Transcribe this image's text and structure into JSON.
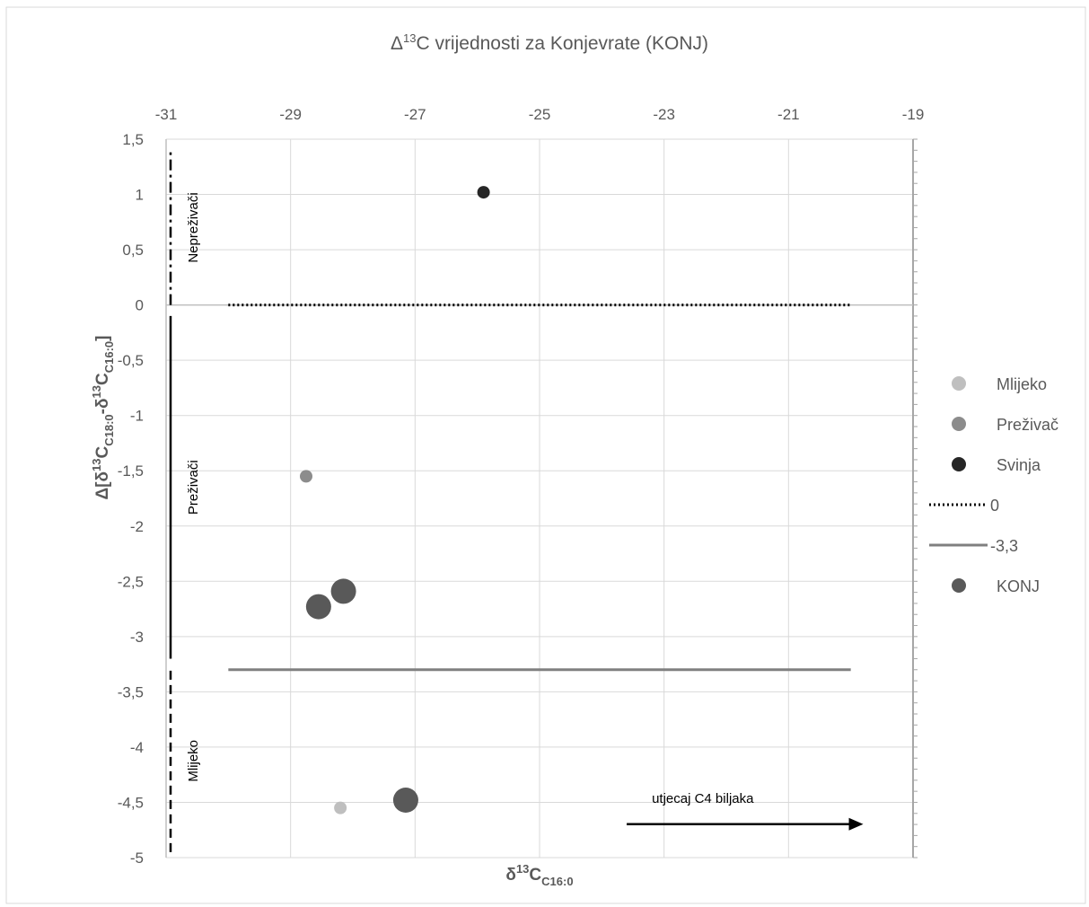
{
  "chart_data": {
    "type": "scatter",
    "title": "Δ13C vrijednosti za Konjevrate (KONJ)",
    "title_parts": {
      "pre": "Δ",
      "sup": "13",
      "post": "C vrijednosti za Konjevrate (KONJ)"
    },
    "xlabel": "δ13CC16:0",
    "xlabel_parts": {
      "main": "δ",
      "sup": "13",
      "mid": "C",
      "sub": "C16:0"
    },
    "ylabel": "Δ[δ13CC18:0-δ13CC16:0]",
    "ylabel_parts": {
      "a": "Δ[δ",
      "sup1": "13",
      "b": "C",
      "sub1": "C18:0",
      "c": "-δ",
      "sup2": "13",
      "d": "C",
      "sub2": "C16:0",
      "e": "]"
    },
    "xlim": [
      -31,
      -19
    ],
    "ylim": [
      -5,
      1.5
    ],
    "x_ticks": [
      "-31",
      "-29",
      "-27",
      "-25",
      "-23",
      "-21",
      "-19"
    ],
    "x_tick_values": [
      -31,
      -29,
      -27,
      -25,
      -23,
      -21,
      -19
    ],
    "y_ticks": [
      "1,5",
      "1",
      "0,5",
      "0",
      "-0,5",
      "-1",
      "-1,5",
      "-2",
      "-2,5",
      "-3",
      "-3,5",
      "-4",
      "-4,5",
      "-5"
    ],
    "y_tick_values": [
      1.5,
      1,
      0.5,
      0,
      -0.5,
      -1,
      -1.5,
      -2,
      -2.5,
      -3,
      -3.5,
      -4,
      -4.5,
      -5
    ],
    "x_axis_position": "top",
    "grid": true,
    "legend_position": "right",
    "series": [
      {
        "name": "Mlijeko",
        "marker": "circle",
        "size": "small",
        "color": "#bfbfbf",
        "points": [
          {
            "x": -28.2,
            "y": -4.55
          }
        ]
      },
      {
        "name": "Preživač",
        "marker": "circle",
        "size": "small",
        "color": "#8c8c8c",
        "points": [
          {
            "x": -28.75,
            "y": -1.55
          }
        ]
      },
      {
        "name": "Svinja",
        "marker": "circle",
        "size": "small",
        "color": "#262626",
        "points": [
          {
            "x": -25.9,
            "y": 1.02
          }
        ]
      },
      {
        "name": "0",
        "marker": "dotted-line",
        "color": "#000000",
        "points": [
          {
            "x": -30,
            "y": 0
          },
          {
            "x": -20,
            "y": 0
          }
        ]
      },
      {
        "name": "-3,3",
        "marker": "line",
        "color": "#808080",
        "points": [
          {
            "x": -30,
            "y": -3.3
          },
          {
            "x": -20,
            "y": -3.3
          }
        ]
      },
      {
        "name": "KONJ",
        "marker": "circle",
        "size": "large",
        "color": "#595959",
        "points": [
          {
            "x": -28.55,
            "y": -2.73
          },
          {
            "x": -28.15,
            "y": -2.59
          },
          {
            "x": -27.15,
            "y": -4.48
          }
        ]
      }
    ],
    "annotations": {
      "regions": [
        {
          "label": "Nepreživači",
          "range": [
            0,
            1.4
          ],
          "style": "dash-dot"
        },
        {
          "label": "Preživači",
          "range": [
            -3.2,
            -0.1
          ],
          "style": "solid"
        },
        {
          "label": "Mlijeko",
          "range": [
            -4.95,
            -3.3
          ],
          "style": "dashed"
        }
      ],
      "arrow": {
        "label": "utjecaj C4 biljaka",
        "x_from": -23.6,
        "x_to": -19.8,
        "y": -4.6
      }
    }
  }
}
